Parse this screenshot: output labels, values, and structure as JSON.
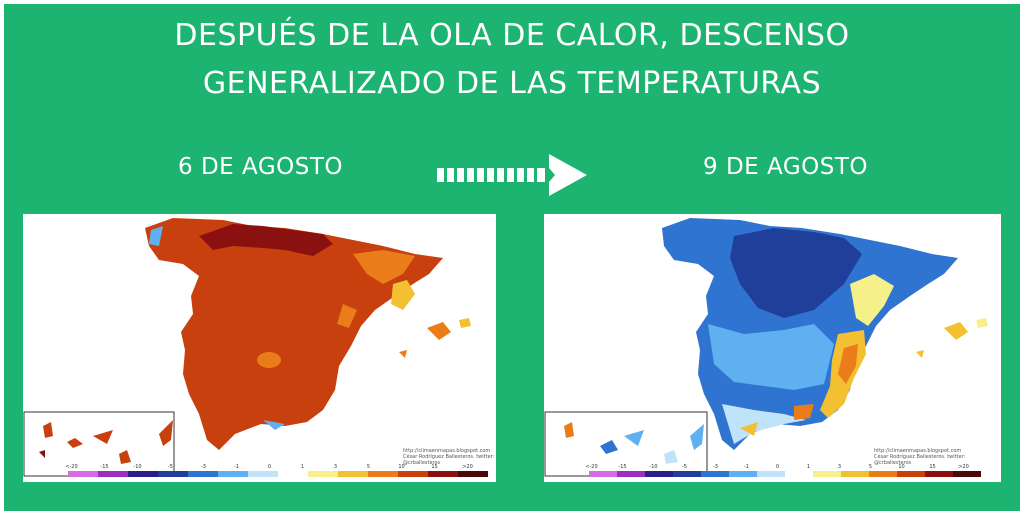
{
  "headline": {
    "line1": "DESPUÉS DE LA OLA DE CALOR, DESCENSO",
    "line2": "GENERALIZADO DE LAS TEMPERATURAS"
  },
  "maps": [
    {
      "date_label": "6 DE AGOSTO",
      "dominant_color": "#c8400e",
      "credit_line1": "http://climaenmapas.blogspot.com",
      "credit_line2": "César Rodríguez Ballesteros. twitter: @crballesteros"
    },
    {
      "date_label": "9 DE AGOSTO",
      "dominant_color": "#1f6fd4",
      "credit_line1": "http://climaenmapas.blogspot.com",
      "credit_line2": "César Rodríguez Ballesteros. twitter: @crballesteros"
    }
  ],
  "arrow_icon": "right-arrow-icon",
  "legend": {
    "ticks": [
      "<-20",
      "-15",
      "-10",
      "-5",
      "-3",
      "-1",
      "0",
      "1",
      "3",
      "5",
      "10",
      "15",
      ">20"
    ],
    "colors": [
      "#d36ee0",
      "#9b2fc0",
      "#2a1f8a",
      "#1f3f9a",
      "#2f74d0",
      "#5fb0f0",
      "#bfe4fa",
      "#ffffff",
      "#f5f08a",
      "#f2c030",
      "#ea7d1a",
      "#c8400e",
      "#8b1010",
      "#4a0808"
    ]
  },
  "colors": {
    "background": "#1db472",
    "text": "#ffffff"
  }
}
